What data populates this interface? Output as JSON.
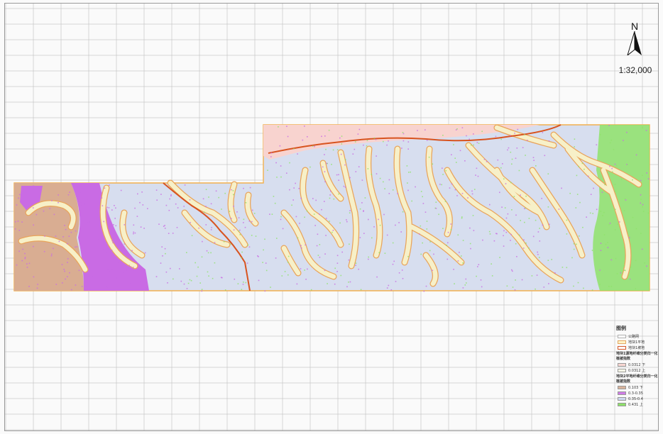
{
  "scale_text": "1:32,000",
  "north_label": "N",
  "legend": {
    "title": "图例",
    "lines": [
      {
        "label": "公路网",
        "color": "#ffffff",
        "border": "#b0b0b0"
      },
      {
        "label": "地块1平地",
        "color": "#fff3c8",
        "border": "#e4a860"
      },
      {
        "label": "地块1坡地",
        "color": "#ffffff",
        "border": "#d4582a"
      }
    ],
    "group1": {
      "heading": "地块1源地纤维分类归一化植被指数",
      "items": [
        {
          "label": "0.0312 下",
          "color": "#f9d7d3"
        },
        {
          "label": "0.0312 上",
          "color": "#fdfde8"
        }
      ]
    },
    "group2": {
      "heading": "地块2平地纤维分类归一化植被指数",
      "items": [
        {
          "label": "0.103 下",
          "color": "#d9b39c"
        },
        {
          "label": "0.3-0.35",
          "color": "#cf7ce6"
        },
        {
          "label": "0.35-0.4",
          "color": "#cfd8f0"
        },
        {
          "label": "0.431 上",
          "color": "#8ee06a"
        }
      ]
    }
  },
  "colors": {
    "grid": "#c8c8c8",
    "boundary": "#f2b04e",
    "base": "#d7deef",
    "bare": "#d9ad92",
    "purple": "#c96be4",
    "green": "#8fe36a",
    "valley_fill": "#f7f0c8",
    "valley_edge": "#e9a45a",
    "river": "#d8531f",
    "pink_band": "#f8d3cf"
  }
}
